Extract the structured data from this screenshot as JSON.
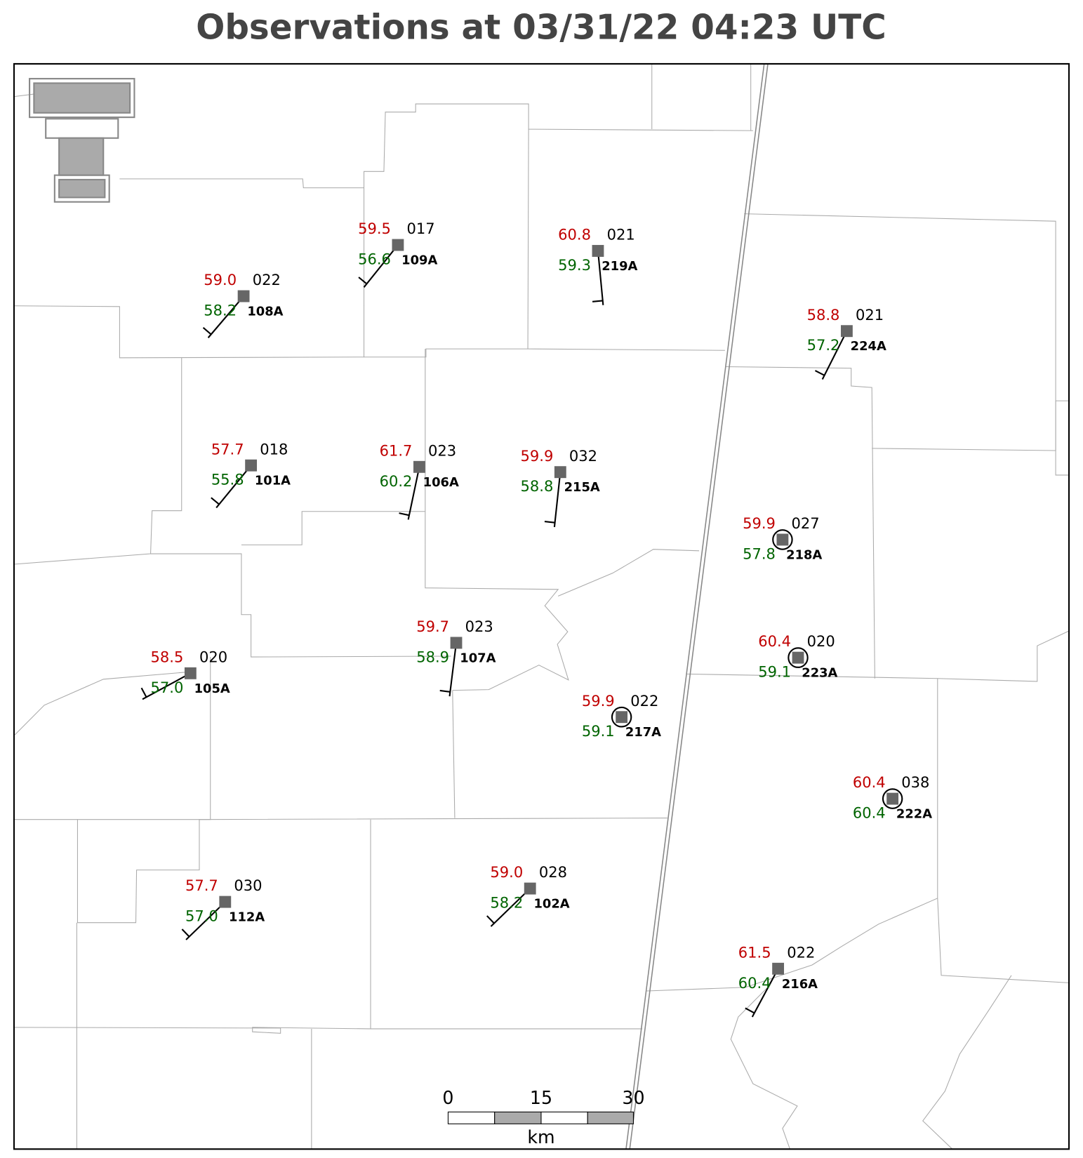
{
  "title": "Observations at 03/31/22 04:23 UTC",
  "stations": [
    {
      "id": "108A",
      "temperature": "59.0",
      "dewpoint": "58.2",
      "pressure": "022"
    },
    {
      "id": "109A",
      "temperature": "59.5",
      "dewpoint": "56.6",
      "pressure": "017"
    },
    {
      "id": "219A",
      "temperature": "60.8",
      "dewpoint": "59.3",
      "pressure": "021"
    },
    {
      "id": "224A",
      "temperature": "58.8",
      "dewpoint": "57.2",
      "pressure": "021"
    },
    {
      "id": "101A",
      "temperature": "57.7",
      "dewpoint": "55.8",
      "pressure": "018"
    },
    {
      "id": "106A",
      "temperature": "61.7",
      "dewpoint": "60.2",
      "pressure": "023"
    },
    {
      "id": "215A",
      "temperature": "59.9",
      "dewpoint": "58.8",
      "pressure": "032"
    },
    {
      "id": "218A",
      "temperature": "59.9",
      "dewpoint": "57.8",
      "pressure": "027"
    },
    {
      "id": "223A",
      "temperature": "60.4",
      "dewpoint": "59.1",
      "pressure": "020"
    },
    {
      "id": "105A",
      "temperature": "58.5",
      "dewpoint": "57.0",
      "pressure": "020"
    },
    {
      "id": "107A",
      "temperature": "59.7",
      "dewpoint": "58.9",
      "pressure": "023"
    },
    {
      "id": "217A",
      "temperature": "59.9",
      "dewpoint": "59.1",
      "pressure": "022"
    },
    {
      "id": "222A",
      "temperature": "60.4",
      "dewpoint": "60.4",
      "pressure": "038"
    },
    {
      "id": "112A",
      "temperature": "57.7",
      "dewpoint": "57.0",
      "pressure": "030"
    },
    {
      "id": "102A",
      "temperature": "59.0",
      "dewpoint": "58.2",
      "pressure": "028"
    },
    {
      "id": "216A",
      "temperature": "61.5",
      "dewpoint": "60.4",
      "pressure": "022"
    }
  ],
  "scale_bar": {
    "labels": [
      "0",
      "15",
      "30"
    ],
    "unit": "km"
  }
}
